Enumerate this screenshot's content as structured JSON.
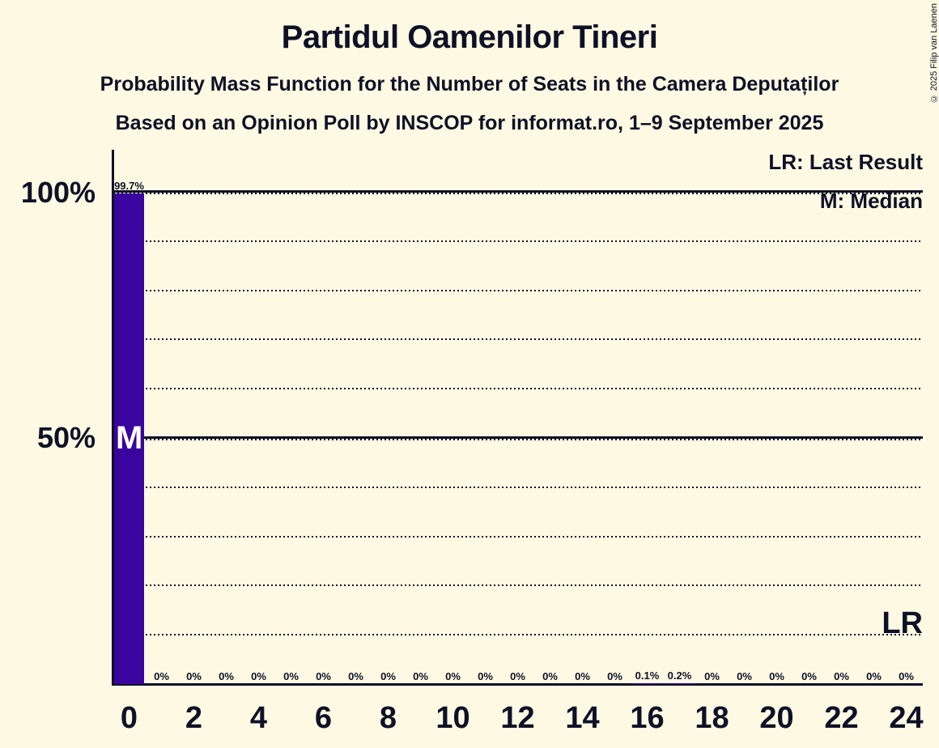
{
  "title": "Partidul Oamenilor Tineri",
  "subtitle": "Probability Mass Function for the Number of Seats in the Camera Deputaților",
  "source_line": "Based on an Opinion Poll by INSCOP for informat.ro, 1–9 September 2025",
  "copyright": "© 2025 Filip van Laenen",
  "legend": {
    "lr_label": "LR: Last Result",
    "m_label": "M: Median"
  },
  "y_axis": {
    "label_100": "100%",
    "label_50": "50%"
  },
  "markers": {
    "median": "M",
    "last_result": "LR"
  },
  "colors": {
    "background": "#fdf9e3",
    "text": "#0e1126",
    "bar": "#3a049e"
  },
  "chart_data": {
    "type": "bar",
    "title": "Probability Mass Function for the Number of Seats in the Camera Deputaților",
    "x": [
      0,
      1,
      2,
      3,
      4,
      5,
      6,
      7,
      8,
      9,
      10,
      11,
      12,
      13,
      14,
      15,
      16,
      17,
      18,
      19,
      20,
      21,
      22,
      23,
      24
    ],
    "values": [
      99.7,
      0,
      0,
      0,
      0,
      0,
      0,
      0,
      0,
      0,
      0,
      0,
      0,
      0,
      0,
      0,
      0.1,
      0.2,
      0,
      0,
      0,
      0,
      0,
      0,
      0
    ],
    "value_labels": [
      "99.7%",
      "0%",
      "0%",
      "0%",
      "0%",
      "0%",
      "0%",
      "0%",
      "0%",
      "0%",
      "0%",
      "0%",
      "0%",
      "0%",
      "0%",
      "0%",
      "0.1%",
      "0.2%",
      "0%",
      "0%",
      "0%",
      "0%",
      "0%",
      "0%",
      "0%"
    ],
    "x_tick_labels": [
      "0",
      "2",
      "4",
      "6",
      "8",
      "10",
      "12",
      "14",
      "16",
      "18",
      "20",
      "22",
      "24"
    ],
    "ylim": [
      0,
      100
    ],
    "y_gridlines_solid_pct": [
      100,
      50
    ],
    "y_gridlines_dotted_pct": [
      90,
      80,
      70,
      60,
      40,
      30,
      20,
      10
    ],
    "grid": true,
    "legend_position": "top-right",
    "median_seat": 0,
    "bar_color": "#3a049e"
  }
}
